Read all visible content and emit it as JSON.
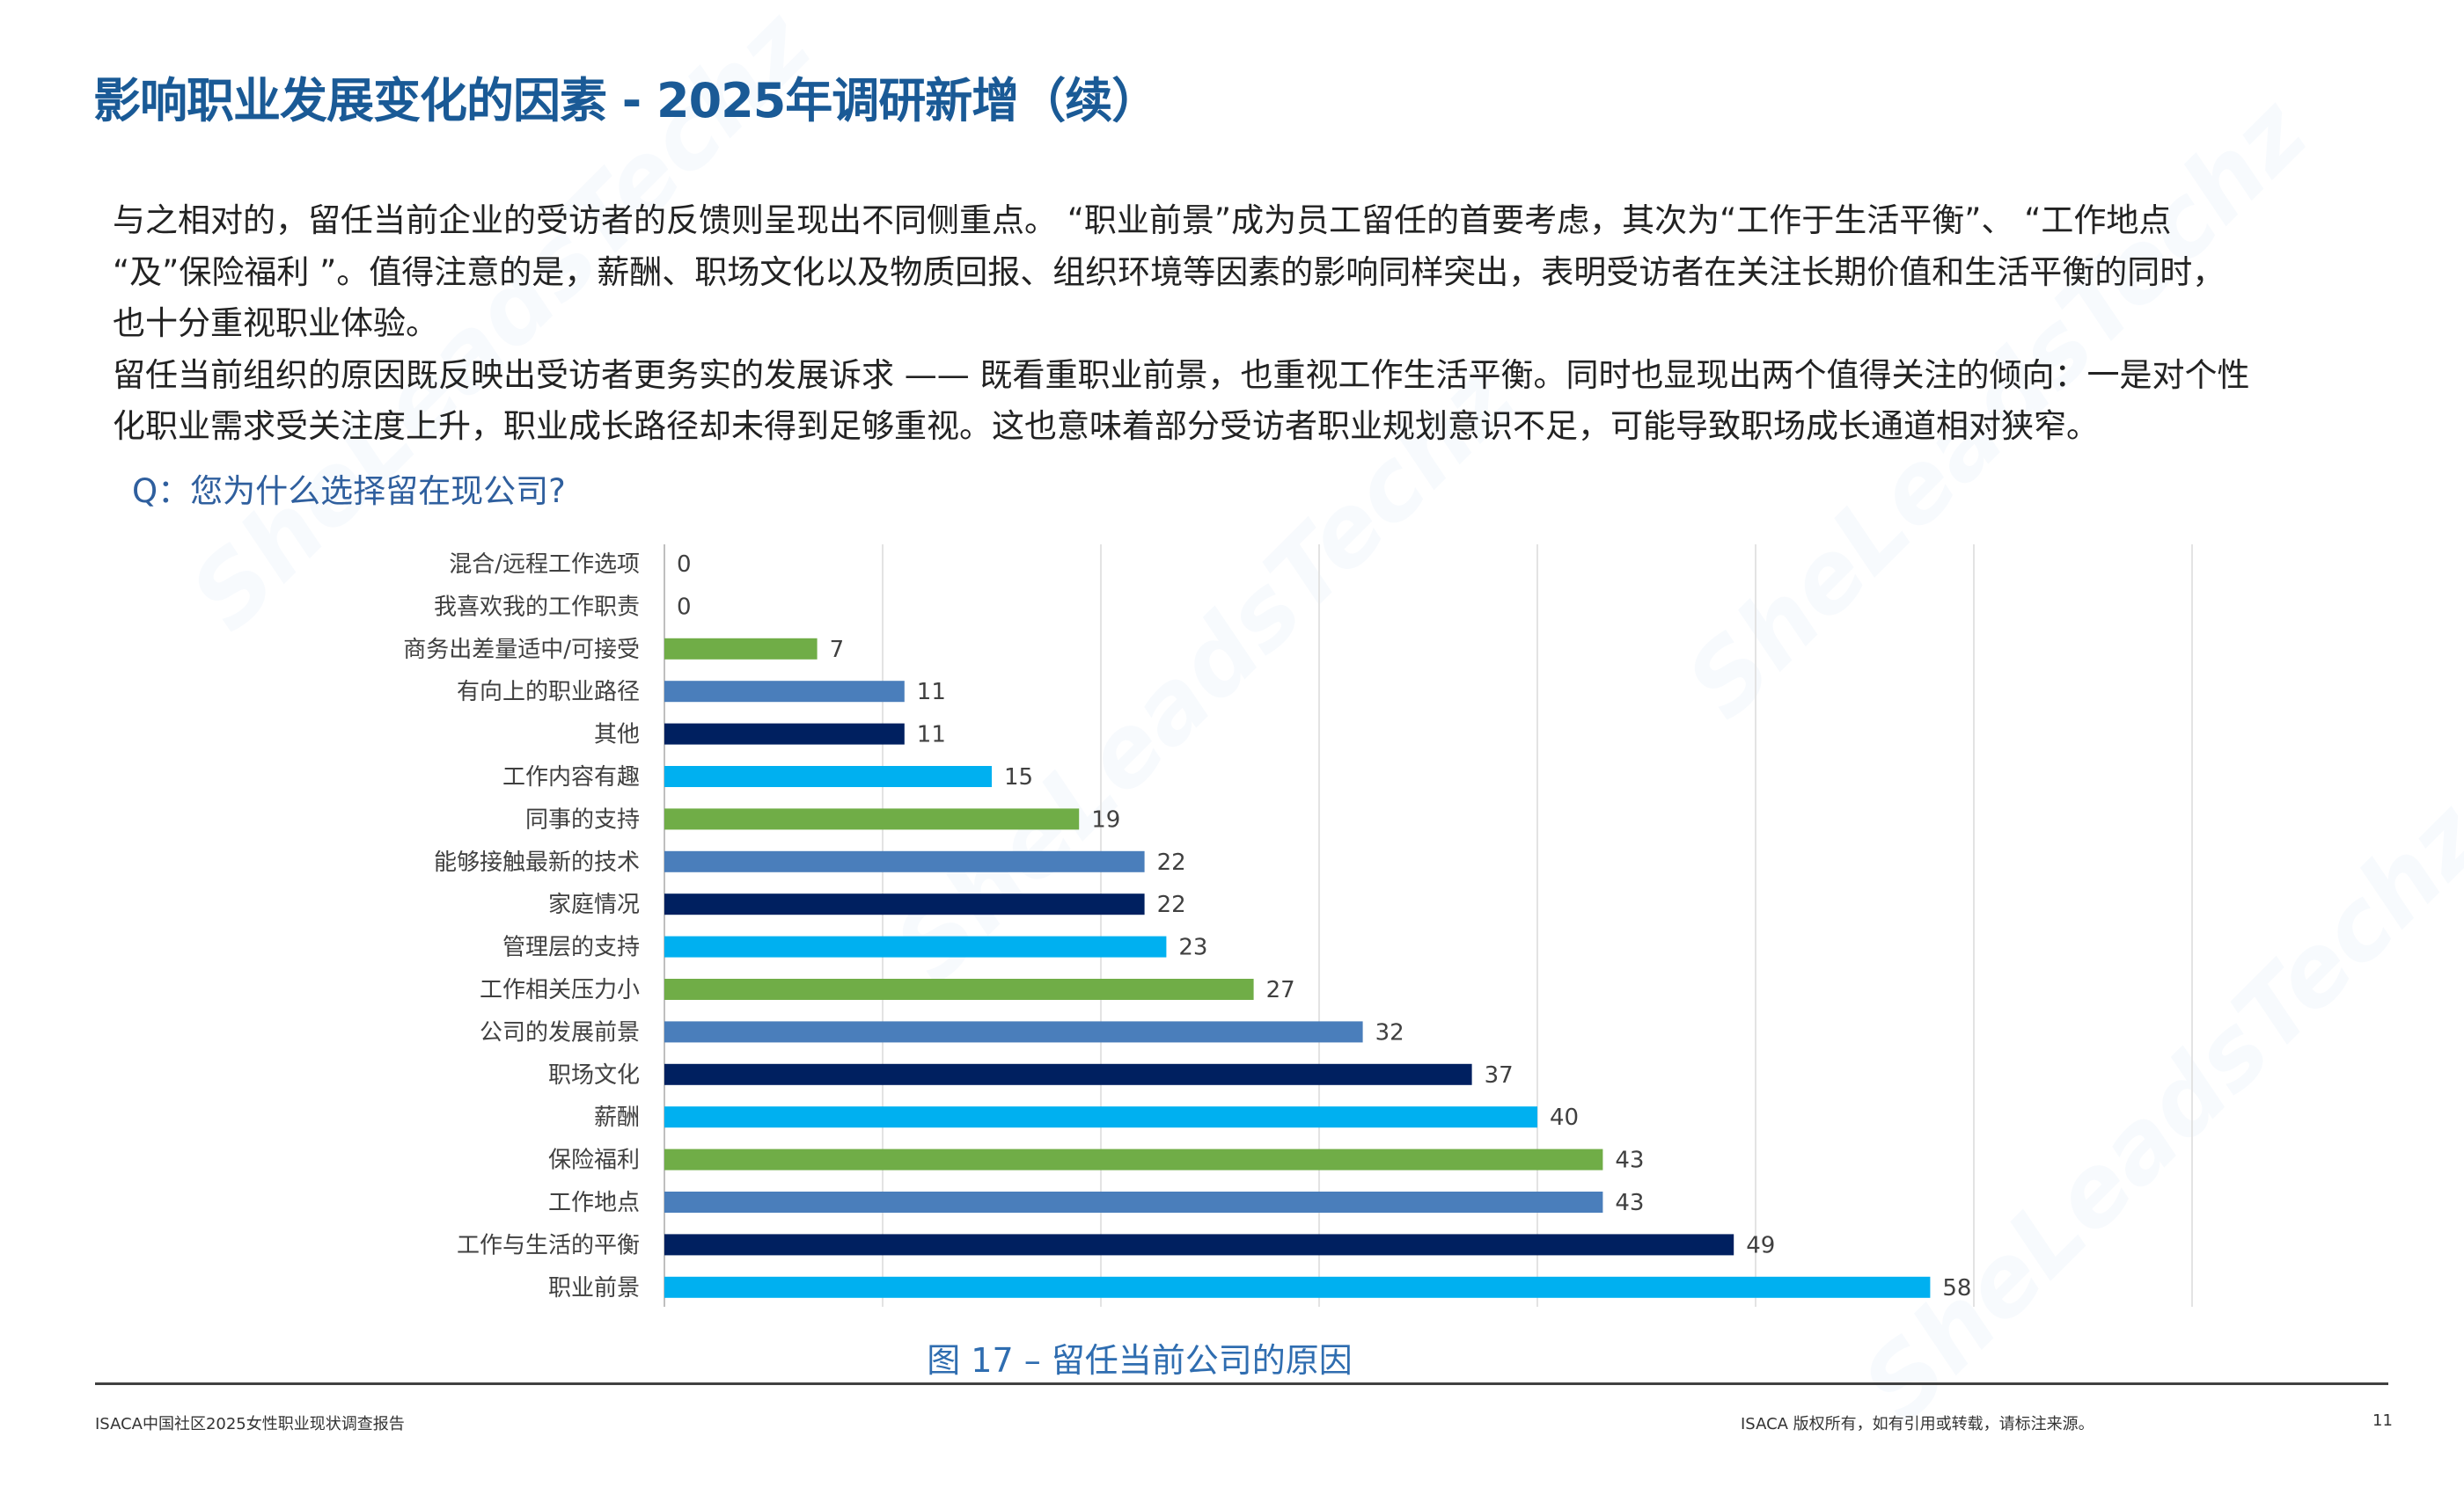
{
  "title": "影响职业发展变化的因素 - 2025年调研新增（续）",
  "body_lines": [
    "与之相对的，留任当前企业的受访者的反馈则呈现出不同侧重点。 “职业前景”成为员工留任的首要考虑，其次为“工作于生活平衡”、 “工作地点",
    " “及”保险福利 ”。值得注意的是，薪酬、职场文化以及物质回报、组织环境等因素的影响同样突出，表明受访者在关注长期价值和生活平衡的同时，",
    "也十分重视职业体验。",
    "留任当前组织的原因既反映出受访者更务实的发展诉求 —— 既看重职业前景，也重视工作生活平衡。同时也显现出两个值得关注的倾向：一是对个性",
    "化职业需求受关注度上升，职业成长路径却未得到足够重视。这也意味着部分受访者职业规划意识不足，可能导致职场成长通道相对狭窄。"
  ],
  "question": "Q：您为什么选择留在现公司?",
  "watermark": "SheLeadsTechz",
  "chart_data": {
    "type": "bar",
    "orientation": "horizontal",
    "categories": [
      "混合/远程工作选项",
      "我喜欢我的工作职责",
      "商务出差量适中/可接受",
      "有向上的职业路径",
      "其他",
      "工作内容有趣",
      "同事的支持",
      "能够接触最新的技术",
      "家庭情况",
      "管理层的支持",
      "工作相关压力小",
      "公司的发展前景",
      "职场文化",
      "薪酬",
      "保险福利",
      "工作地点",
      "工作与生活的平衡",
      "职业前景"
    ],
    "values": [
      0,
      0,
      7,
      11,
      11,
      15,
      19,
      22,
      22,
      23,
      27,
      32,
      37,
      40,
      43,
      43,
      49,
      58
    ],
    "colors": [
      "#00b0f0",
      "#70ad47",
      "#70ad47",
      "#4a7ebb",
      "#002060",
      "#00b0f0",
      "#70ad47",
      "#4a7ebb",
      "#002060",
      "#00b0f0",
      "#70ad47",
      "#4a7ebb",
      "#002060",
      "#00b0f0",
      "#70ad47",
      "#4a7ebb",
      "#002060",
      "#00b0f0"
    ],
    "xlim": [
      0,
      70
    ],
    "grid": true,
    "data_labels": true,
    "caption": "图 17 – 留任当前公司的原因"
  },
  "footer": {
    "left": "ISACA中国社区2025女性职业现状调查报告",
    "right": "ISACA 版权所有，如有引用或转载，请标注来源。",
    "page": "11"
  }
}
